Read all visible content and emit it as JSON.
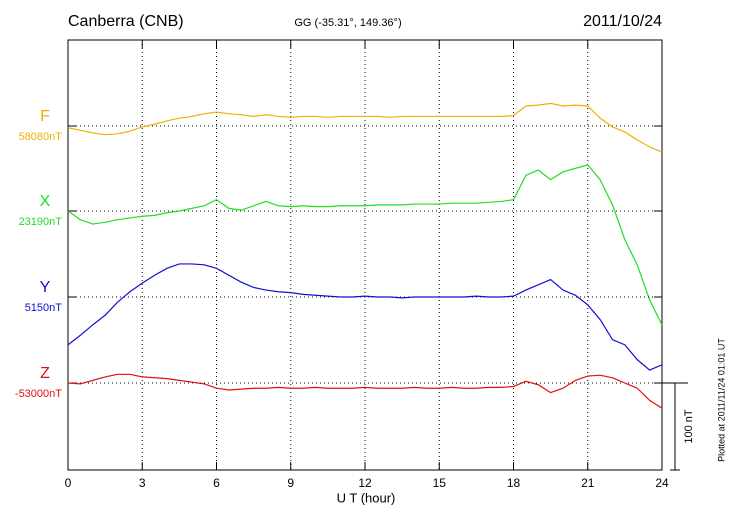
{
  "chart_data": {
    "type": "line",
    "title": "Canberra (CNB)",
    "subtitle": "GG (-35.31°, 149.36°)",
    "date": "2011/10/24",
    "x_label": "U T (hour)",
    "note": "Plotted at 2011/11/24 01:01 UT",
    "xlim": [
      0,
      24
    ],
    "xticks": [
      0,
      3,
      6,
      9,
      12,
      15,
      18,
      21,
      24
    ],
    "grid": true,
    "scale": {
      "value": 100,
      "label": "100 nT"
    },
    "x": [
      0,
      0.5,
      1,
      1.5,
      2,
      2.5,
      3,
      3.5,
      4,
      4.5,
      5,
      5.5,
      6,
      6.5,
      7,
      7.5,
      8,
      8.5,
      9,
      9.5,
      10,
      10.5,
      11,
      11.5,
      12,
      12.5,
      13,
      13.5,
      14,
      14.5,
      15,
      15.5,
      16,
      16.5,
      17,
      17.5,
      18,
      18.5,
      19,
      19.5,
      20,
      20.5,
      21,
      21.5,
      22,
      22.5,
      23,
      23.5,
      24
    ],
    "series": [
      {
        "name": "F",
        "color": "#f0b000",
        "baseline": {
          "value": 58080,
          "label": "58080nT"
        },
        "values": [
          58078,
          58075,
          58072,
          58070,
          58071,
          58074,
          58079,
          58082,
          58086,
          58089,
          58091,
          58094,
          58096,
          58094,
          58093,
          58091,
          58093,
          58091,
          58090,
          58091,
          58091,
          58090,
          58091,
          58091,
          58091,
          58091,
          58090,
          58091,
          58091,
          58091,
          58091,
          58091,
          58091,
          58091,
          58091,
          58091,
          58092,
          58103,
          58104,
          58106,
          58103,
          58104,
          58103,
          58089,
          58079,
          58073,
          58064,
          58056,
          58050
        ]
      },
      {
        "name": "X",
        "color": "#22dd22",
        "baseline": {
          "value": 23190,
          "label": "23190nT"
        },
        "values": [
          23190,
          23180,
          23175,
          23177,
          23180,
          23182,
          23184,
          23185,
          23188,
          23190,
          23193,
          23196,
          23203,
          23193,
          23191,
          23196,
          23201,
          23196,
          23195,
          23196,
          23195,
          23195,
          23196,
          23196,
          23196,
          23197,
          23197,
          23197,
          23198,
          23198,
          23198,
          23199,
          23199,
          23199,
          23200,
          23201,
          23203,
          23231,
          23237,
          23226,
          23235,
          23239,
          23243,
          23226,
          23197,
          23157,
          23128,
          23088,
          23059
        ]
      },
      {
        "name": "Y",
        "color": "#1010d0",
        "baseline": {
          "value": 5150,
          "label": "5150nT"
        },
        "values": [
          5095,
          5106,
          5118,
          5129,
          5144,
          5156,
          5166,
          5175,
          5183,
          5188,
          5188,
          5187,
          5183,
          5175,
          5167,
          5161,
          5158,
          5156,
          5155,
          5153,
          5152,
          5151,
          5150,
          5150,
          5151,
          5150,
          5150,
          5149,
          5150,
          5150,
          5150,
          5150,
          5150,
          5151,
          5150,
          5150,
          5151,
          5158,
          5164,
          5170,
          5158,
          5152,
          5141,
          5124,
          5101,
          5095,
          5078,
          5066,
          5072
        ]
      },
      {
        "name": "Z",
        "color": "#e01010",
        "baseline": {
          "value": -53000,
          "label": "-53000nT"
        },
        "values": [
          -53000,
          -53001,
          -52997,
          -52993,
          -52990,
          -52990,
          -52993,
          -52994,
          -52995,
          -52997,
          -52999,
          -53001,
          -53006,
          -53008,
          -53007,
          -53006,
          -53006,
          -53005,
          -53006,
          -53006,
          -53005,
          -53006,
          -53006,
          -53006,
          -53005,
          -53006,
          -53006,
          -53006,
          -53005,
          -53006,
          -53006,
          -53005,
          -53006,
          -53006,
          -53005,
          -53005,
          -53004,
          -52998,
          -53002,
          -53011,
          -53006,
          -52997,
          -52992,
          -52991,
          -52994,
          -53000,
          -53006,
          -53020,
          -53029
        ]
      }
    ]
  }
}
